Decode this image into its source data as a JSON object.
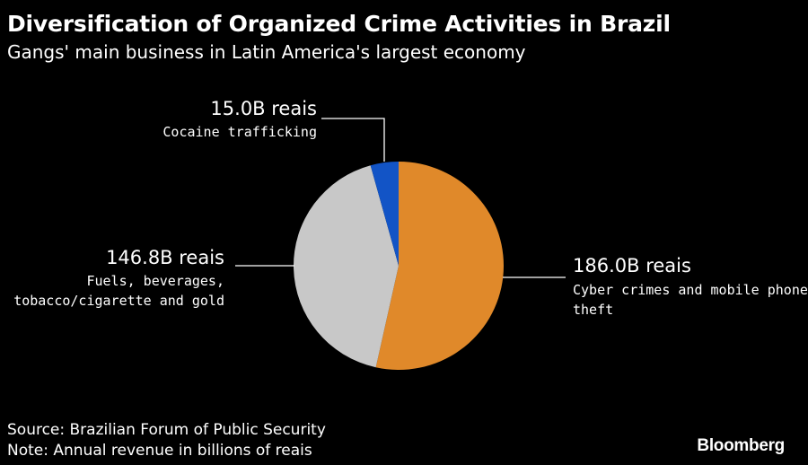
{
  "chart_data": {
    "type": "pie",
    "title": "Diversification of Organized Crime Activities in Brazil",
    "subtitle": "Gangs' main business in Latin America's largest economy",
    "slices": [
      {
        "label": "Cyber crimes and mobile phone theft",
        "value": 186.0,
        "value_label": "186.0B reais",
        "color": "#e0892a"
      },
      {
        "label": "Fuels, beverages, tobacco/cigarette and gold",
        "value": 146.8,
        "value_label": "146.8B reais",
        "color": "#c8c8c8"
      },
      {
        "label": "Cocaine trafficking",
        "value": 15.0,
        "value_label": "15.0B reais",
        "color": "#1254c6"
      }
    ],
    "unit": "billions of reais"
  },
  "footer": {
    "source": "Source: Brazilian Forum of Public Security",
    "note": "Note: Annual revenue in billions of reais",
    "brand": "Bloomberg"
  }
}
